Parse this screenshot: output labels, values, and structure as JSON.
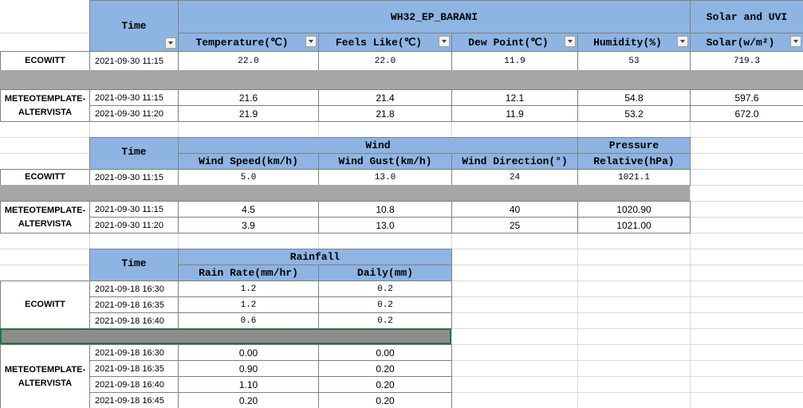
{
  "sections": [
    {
      "time_header": "Time",
      "groups": [
        {
          "label": "WH32_EP_BARANI",
          "columns": [
            "Temperature(℃)",
            "Feels Like(℃)",
            "Dew Point(℃)",
            "Humidity(%)"
          ]
        },
        {
          "label": "Solar and UVI",
          "columns": [
            "Solar(w/m²)"
          ]
        }
      ],
      "sources": [
        {
          "name": "ECOWITT",
          "rows": [
            [
              "2021-09-30 11:15",
              "22.0",
              "22.0",
              "11.9",
              "53",
              "719.3"
            ]
          ]
        },
        {
          "name": "METEOTEMPLATE-ALTERVISTA",
          "rows": [
            [
              "2021-09-30 11:15",
              "21.6",
              "21.4",
              "12.1",
              "54.8",
              "597.6"
            ],
            [
              "2021-09-30 11:20",
              "21.9",
              "21.8",
              "11.9",
              "53.2",
              "672.0"
            ]
          ]
        }
      ]
    },
    {
      "time_header": "Time",
      "groups": [
        {
          "label": "Wind",
          "columns": [
            "Wind Speed(km/h)",
            "Wind Gust(km/h)",
            "Wind Direction(°)"
          ]
        },
        {
          "label": "Pressure",
          "columns": [
            "Relative(hPa)"
          ]
        }
      ],
      "sources": [
        {
          "name": "ECOWITT",
          "rows": [
            [
              "2021-09-30 11:15",
              "5.0",
              "13.0",
              "24",
              "1021.1"
            ]
          ]
        },
        {
          "name": "METEOTEMPLATE-ALTERVISTA",
          "rows": [
            [
              "2021-09-30 11:15",
              "4.5",
              "10.8",
              "40",
              "1020.90"
            ],
            [
              "2021-09-30 11:20",
              "3.9",
              "13.0",
              "25",
              "1021.00"
            ]
          ]
        }
      ]
    },
    {
      "time_header": "Time",
      "groups": [
        {
          "label": "Rainfall",
          "columns": [
            "Rain Rate(mm/hr)",
            "Daily(mm)"
          ]
        }
      ],
      "sources": [
        {
          "name": "ECOWITT",
          "rows": [
            [
              "2021-09-18 16:30",
              "1.2",
              "0.2"
            ],
            [
              "2021-09-18 16:35",
              "1.2",
              "0.2"
            ],
            [
              "2021-09-18 16:40",
              "0.6",
              "0.2"
            ]
          ]
        },
        {
          "name": "METEOTEMPLATE-ALTERVISTA",
          "rows": [
            [
              "2021-09-18 16:30",
              "0.00",
              "0.00"
            ],
            [
              "2021-09-18 16:35",
              "0.90",
              "0.20"
            ],
            [
              "2021-09-18 16:40",
              "1.10",
              "0.20"
            ],
            [
              "2021-09-18 16:45",
              "0.20",
              "0.20"
            ]
          ]
        }
      ]
    }
  ]
}
